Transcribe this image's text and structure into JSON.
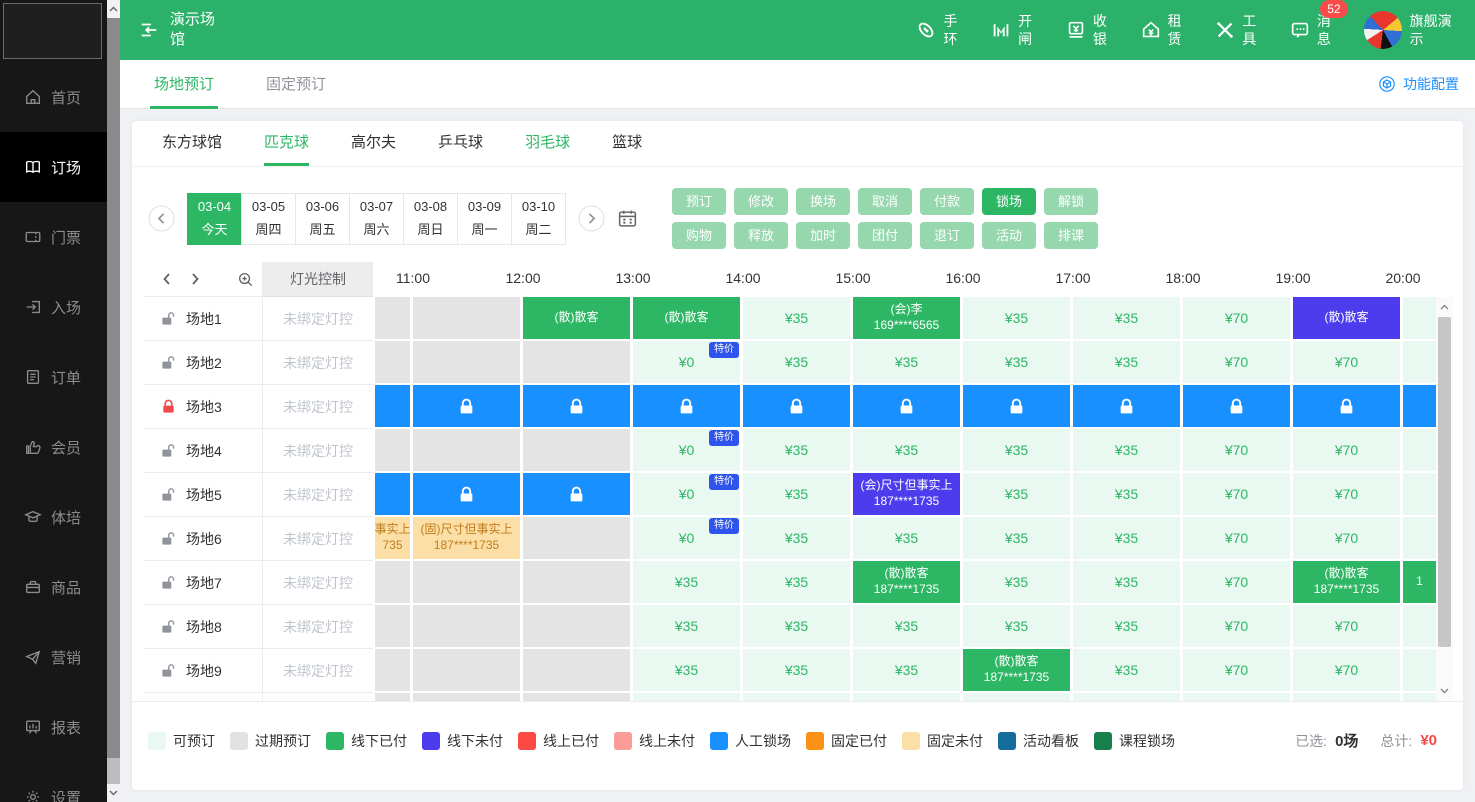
{
  "app": {
    "title": "演示场馆"
  },
  "header": {
    "nav": [
      {
        "label": "手环",
        "icon": "wristband-icon"
      },
      {
        "label": "开闸",
        "icon": "gate-icon"
      },
      {
        "label": "收银",
        "icon": "cashier-icon"
      },
      {
        "label": "租赁",
        "icon": "rental-icon"
      },
      {
        "label": "工具",
        "icon": "tools-icon"
      },
      {
        "label": "消息",
        "icon": "message-icon",
        "badge": "52"
      }
    ],
    "user": {
      "label": "旗舰演示"
    }
  },
  "sidebar": {
    "items": [
      {
        "label": "首页",
        "icon": "home-icon",
        "active": false
      },
      {
        "label": "订场",
        "icon": "booking-icon",
        "active": true
      },
      {
        "label": "门票",
        "icon": "ticket-icon",
        "active": false
      },
      {
        "label": "入场",
        "icon": "entry-icon",
        "active": false
      },
      {
        "label": "订单",
        "icon": "order-icon",
        "active": false
      },
      {
        "label": "会员",
        "icon": "member-icon",
        "active": false
      },
      {
        "label": "体培",
        "icon": "training-icon",
        "active": false
      },
      {
        "label": "商品",
        "icon": "goods-icon",
        "active": false
      },
      {
        "label": "营销",
        "icon": "marketing-icon",
        "active": false
      },
      {
        "label": "报表",
        "icon": "report-icon",
        "active": false
      },
      {
        "label": "设置",
        "icon": "settings-icon",
        "active": false
      }
    ]
  },
  "tabs": {
    "items": [
      {
        "label": "场地预订",
        "active": true
      },
      {
        "label": "固定预订",
        "active": false
      }
    ],
    "config_label": "功能配置"
  },
  "sports": {
    "items": [
      {
        "label": "东方球馆",
        "state": "normal"
      },
      {
        "label": "匹克球",
        "state": "active"
      },
      {
        "label": "高尔夫",
        "state": "normal"
      },
      {
        "label": "乒乓球",
        "state": "normal"
      },
      {
        "label": "羽毛球",
        "state": "highlight"
      },
      {
        "label": "篮球",
        "state": "normal"
      }
    ]
  },
  "dates": {
    "items": [
      {
        "date": "03-04",
        "day": "今天",
        "selected": true
      },
      {
        "date": "03-05",
        "day": "周四",
        "selected": false
      },
      {
        "date": "03-06",
        "day": "周五",
        "selected": false
      },
      {
        "date": "03-07",
        "day": "周六",
        "selected": false
      },
      {
        "date": "03-08",
        "day": "周日",
        "selected": false
      },
      {
        "date": "03-09",
        "day": "周一",
        "selected": false
      },
      {
        "date": "03-10",
        "day": "周二",
        "selected": false
      }
    ]
  },
  "actions": {
    "rows": [
      [
        {
          "label": "预订"
        },
        {
          "label": "修改"
        },
        {
          "label": "换场"
        },
        {
          "label": "取消"
        },
        {
          "label": "付款"
        },
        {
          "label": "锁场",
          "active": true
        },
        {
          "label": "解锁"
        }
      ],
      [
        {
          "label": "购物"
        },
        {
          "label": "释放"
        },
        {
          "label": "加时"
        },
        {
          "label": "团付"
        },
        {
          "label": "退订"
        },
        {
          "label": "活动"
        },
        {
          "label": "排课"
        }
      ]
    ]
  },
  "grid": {
    "light_header": "灯光控制",
    "light_status": "未绑定灯控",
    "times": [
      "11:00",
      "12:00",
      "13:00",
      "14:00",
      "15:00",
      "16:00",
      "17:00",
      "18:00",
      "19:00",
      "20:00"
    ],
    "rows": [
      {
        "name": "场地1",
        "lock": "open",
        "cells": [
          {
            "t": "past"
          },
          {
            "t": "past"
          },
          {
            "t": "paid",
            "l": [
              "(散)散客"
            ]
          },
          {
            "t": "paid",
            "l": [
              "(散)散客"
            ]
          },
          {
            "t": "price",
            "l": [
              "¥35"
            ]
          },
          {
            "t": "paid",
            "l": [
              "(会)李",
              "169****6565"
            ]
          },
          {
            "t": "price",
            "l": [
              "¥35"
            ]
          },
          {
            "t": "price",
            "l": [
              "¥35"
            ]
          },
          {
            "t": "price",
            "l": [
              "¥70"
            ]
          },
          {
            "t": "unpaid",
            "l": [
              "(散)散客"
            ]
          },
          {
            "t": "avail"
          }
        ]
      },
      {
        "name": "场地2",
        "lock": "open",
        "cells": [
          {
            "t": "past"
          },
          {
            "t": "past"
          },
          {
            "t": "past"
          },
          {
            "t": "price",
            "l": [
              "¥0"
            ],
            "b": "特价"
          },
          {
            "t": "price",
            "l": [
              "¥35"
            ]
          },
          {
            "t": "price",
            "l": [
              "¥35"
            ]
          },
          {
            "t": "price",
            "l": [
              "¥35"
            ]
          },
          {
            "t": "price",
            "l": [
              "¥35"
            ]
          },
          {
            "t": "price",
            "l": [
              "¥70"
            ]
          },
          {
            "t": "price",
            "l": [
              "¥70"
            ]
          },
          {
            "t": "avail"
          }
        ]
      },
      {
        "name": "场地3",
        "lock": "locked",
        "cells": [
          {
            "t": "lockplain"
          },
          {
            "t": "lock"
          },
          {
            "t": "lock"
          },
          {
            "t": "lock"
          },
          {
            "t": "lock"
          },
          {
            "t": "lock"
          },
          {
            "t": "lock"
          },
          {
            "t": "lock"
          },
          {
            "t": "lock"
          },
          {
            "t": "lock"
          },
          {
            "t": "lockplain"
          }
        ]
      },
      {
        "name": "场地4",
        "lock": "open",
        "cells": [
          {
            "t": "past"
          },
          {
            "t": "past"
          },
          {
            "t": "past"
          },
          {
            "t": "price",
            "l": [
              "¥0"
            ],
            "b": "特价"
          },
          {
            "t": "price",
            "l": [
              "¥35"
            ]
          },
          {
            "t": "price",
            "l": [
              "¥35"
            ]
          },
          {
            "t": "price",
            "l": [
              "¥35"
            ]
          },
          {
            "t": "price",
            "l": [
              "¥35"
            ]
          },
          {
            "t": "price",
            "l": [
              "¥70"
            ]
          },
          {
            "t": "price",
            "l": [
              "¥70"
            ]
          },
          {
            "t": "avail"
          }
        ]
      },
      {
        "name": "场地5",
        "lock": "open",
        "cells": [
          {
            "t": "lockplain"
          },
          {
            "t": "lock"
          },
          {
            "t": "lock"
          },
          {
            "t": "price",
            "l": [
              "¥0"
            ],
            "b": "特价"
          },
          {
            "t": "price",
            "l": [
              "¥35"
            ]
          },
          {
            "t": "unpaid",
            "l": [
              "(会)尺寸但事实上",
              "187****1735"
            ]
          },
          {
            "t": "price",
            "l": [
              "¥35"
            ]
          },
          {
            "t": "price",
            "l": [
              "¥35"
            ]
          },
          {
            "t": "price",
            "l": [
              "¥70"
            ]
          },
          {
            "t": "price",
            "l": [
              "¥70"
            ]
          },
          {
            "t": "avail"
          }
        ]
      },
      {
        "name": "场地6",
        "lock": "open",
        "cells": [
          {
            "t": "fixed",
            "l": [
              "事实上",
              "735"
            ]
          },
          {
            "t": "fixed",
            "l": [
              "(固)尺寸但事实上",
              "187****1735"
            ]
          },
          {
            "t": "past"
          },
          {
            "t": "price",
            "l": [
              "¥0"
            ],
            "b": "特价"
          },
          {
            "t": "price",
            "l": [
              "¥35"
            ]
          },
          {
            "t": "price",
            "l": [
              "¥35"
            ]
          },
          {
            "t": "price",
            "l": [
              "¥35"
            ]
          },
          {
            "t": "price",
            "l": [
              "¥35"
            ]
          },
          {
            "t": "price",
            "l": [
              "¥70"
            ]
          },
          {
            "t": "price",
            "l": [
              "¥70"
            ]
          },
          {
            "t": "avail"
          }
        ]
      },
      {
        "name": "场地7",
        "lock": "open",
        "cells": [
          {
            "t": "past"
          },
          {
            "t": "past"
          },
          {
            "t": "past"
          },
          {
            "t": "price",
            "l": [
              "¥35"
            ]
          },
          {
            "t": "price",
            "l": [
              "¥35"
            ]
          },
          {
            "t": "paid",
            "l": [
              "(散)散客",
              "187****1735"
            ]
          },
          {
            "t": "price",
            "l": [
              "¥35"
            ]
          },
          {
            "t": "price",
            "l": [
              "¥35"
            ]
          },
          {
            "t": "price",
            "l": [
              "¥70"
            ]
          },
          {
            "t": "paid",
            "l": [
              "(散)散客",
              "187****1735"
            ]
          },
          {
            "t": "paid",
            "l": [
              "",
              "1"
            ]
          }
        ]
      },
      {
        "name": "场地8",
        "lock": "open",
        "cells": [
          {
            "t": "past"
          },
          {
            "t": "past"
          },
          {
            "t": "past"
          },
          {
            "t": "price",
            "l": [
              "¥35"
            ]
          },
          {
            "t": "price",
            "l": [
              "¥35"
            ]
          },
          {
            "t": "price",
            "l": [
              "¥35"
            ]
          },
          {
            "t": "price",
            "l": [
              "¥35"
            ]
          },
          {
            "t": "price",
            "l": [
              "¥35"
            ]
          },
          {
            "t": "price",
            "l": [
              "¥70"
            ]
          },
          {
            "t": "price",
            "l": [
              "¥70"
            ]
          },
          {
            "t": "avail"
          }
        ]
      },
      {
        "name": "场地9",
        "lock": "open",
        "cells": [
          {
            "t": "past"
          },
          {
            "t": "past"
          },
          {
            "t": "past"
          },
          {
            "t": "price",
            "l": [
              "¥35"
            ]
          },
          {
            "t": "price",
            "l": [
              "¥35"
            ]
          },
          {
            "t": "price",
            "l": [
              "¥35"
            ]
          },
          {
            "t": "paid",
            "l": [
              "(散)散客",
              "187****1735"
            ]
          },
          {
            "t": "price",
            "l": [
              "¥35"
            ]
          },
          {
            "t": "price",
            "l": [
              "¥70"
            ]
          },
          {
            "t": "price",
            "l": [
              "¥70"
            ]
          },
          {
            "t": "avail"
          }
        ]
      }
    ],
    "partial_row": {
      "name": "",
      "lock": "none",
      "cells": [
        {
          "t": "past"
        },
        {
          "t": "past"
        },
        {
          "t": "past"
        },
        {
          "t": "avail"
        },
        {
          "t": "avail"
        },
        {
          "t": "avail"
        },
        {
          "t": "avail"
        },
        {
          "t": "avail"
        },
        {
          "t": "avail"
        },
        {
          "t": "avail"
        },
        {
          "t": "avail"
        }
      ]
    }
  },
  "legend": {
    "items": [
      {
        "label": "可预订",
        "color": "#E9F8F0"
      },
      {
        "label": "过期预订",
        "color": "#E2E2E2"
      },
      {
        "label": "线下已付",
        "color": "#2DB764"
      },
      {
        "label": "线下未付",
        "color": "#4D3BEE"
      },
      {
        "label": "线上已付",
        "color": "#FA4A43"
      },
      {
        "label": "线上未付",
        "color": "#FA9D98"
      },
      {
        "label": "人工锁场",
        "color": "#1890FF"
      },
      {
        "label": "固定已付",
        "color": "#FB9117"
      },
      {
        "label": "固定未付",
        "color": "#FBDFA6"
      },
      {
        "label": "活动看板",
        "color": "#146C9C"
      },
      {
        "label": "课程锁场",
        "color": "#17804D"
      }
    ],
    "selected_label": "已选:",
    "selected_value": "0场",
    "total_label": "总计:",
    "total_value": "¥0"
  }
}
